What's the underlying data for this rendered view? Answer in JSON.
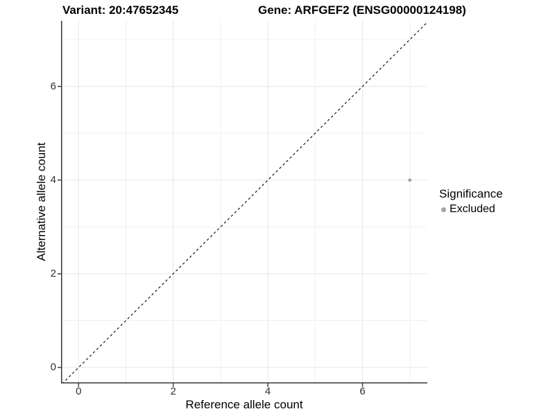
{
  "header": {
    "title_left": "Variant: 20:47652345",
    "title_right": "Gene: ARFGEF2 (ENSG00000124198)"
  },
  "legend": {
    "title": "Significance",
    "items": [
      {
        "label": "Excluded",
        "marker": "circle",
        "color": "#a3a3a3"
      }
    ]
  },
  "chart_data": {
    "type": "scatter",
    "title": "Variant: 20:47652345",
    "subtitle": "Gene: ARFGEF2 (ENSG00000124198)",
    "xlabel": "Reference allele count",
    "ylabel": "Alternative allele count",
    "xlim": [
      -0.37,
      7.37
    ],
    "ylim": [
      -0.34,
      7.4
    ],
    "x_ticks": [
      0,
      2,
      4,
      6
    ],
    "y_ticks": [
      0,
      2,
      4,
      6
    ],
    "x_minor_ticks": [
      1,
      3,
      5,
      7
    ],
    "y_minor_ticks": [
      1,
      3,
      5,
      7
    ],
    "grid": true,
    "legend_position": "right",
    "legend_title": "Significance",
    "series": [
      {
        "name": "Excluded",
        "color": "#a3a3a3",
        "marker": "circle",
        "marker_radius": 2.4,
        "points": [
          {
            "x": 7,
            "y": 4
          }
        ]
      }
    ],
    "reference_line": {
      "kind": "identity",
      "slope": 1,
      "intercept": 0,
      "style": "dashed",
      "color": "#000000"
    }
  },
  "colors": {
    "background": "#ffffff",
    "grid_major": "#ebebeb",
    "grid_minor": "#f0f0f0",
    "axis_line": "#333333",
    "tick_mark": "#333333",
    "tick_text": "#303030"
  }
}
